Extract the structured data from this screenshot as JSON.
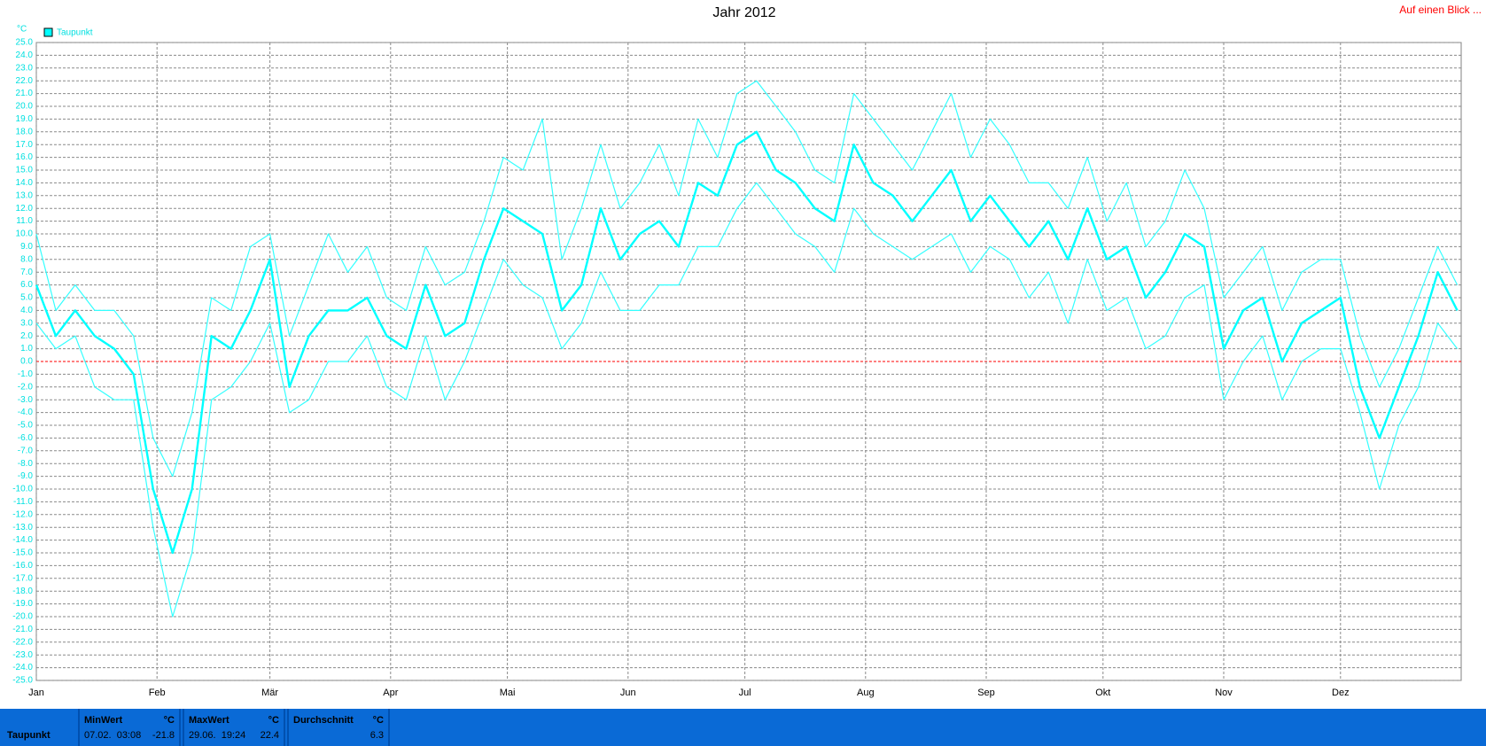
{
  "chart_data": {
    "type": "line",
    "title": "Jahr 2012",
    "link": "Auf einen Blick ...",
    "y_unit": "°C",
    "x": [
      0,
      5,
      10,
      15,
      20,
      25,
      30,
      35,
      40,
      45,
      50,
      55,
      60,
      65,
      70,
      75,
      80,
      85,
      90,
      95,
      100,
      105,
      110,
      115,
      120,
      125,
      130,
      135,
      140,
      145,
      150,
      155,
      160,
      165,
      170,
      175,
      180,
      185,
      190,
      195,
      200,
      205,
      210,
      215,
      220,
      225,
      230,
      235,
      240,
      245,
      250,
      255,
      260,
      265,
      270,
      275,
      280,
      285,
      290,
      295,
      300,
      305,
      310,
      315,
      320,
      325,
      330,
      335,
      340,
      345,
      350,
      355,
      360,
      365
    ],
    "xlim": [
      0,
      366
    ],
    "xticks": [
      {
        "value": 0,
        "label": "Jan"
      },
      {
        "value": 31,
        "label": "Feb"
      },
      {
        "value": 60,
        "label": "Mär"
      },
      {
        "value": 91,
        "label": "Apr"
      },
      {
        "value": 121,
        "label": "Mai"
      },
      {
        "value": 152,
        "label": "Jun"
      },
      {
        "value": 182,
        "label": "Jul"
      },
      {
        "value": 213,
        "label": "Aug"
      },
      {
        "value": 244,
        "label": "Sep"
      },
      {
        "value": 274,
        "label": "Okt"
      },
      {
        "value": 305,
        "label": "Nov"
      },
      {
        "value": 335,
        "label": "Dez"
      }
    ],
    "ylim": [
      -25,
      25
    ],
    "yticks": [
      {
        "value": -25,
        "label": "-25.0"
      },
      {
        "value": -24,
        "label": "-24.0"
      },
      {
        "value": -23,
        "label": "-23.0"
      },
      {
        "value": -22,
        "label": "-22.0"
      },
      {
        "value": -21,
        "label": "-21.0"
      },
      {
        "value": -20,
        "label": "-20.0"
      },
      {
        "value": -19,
        "label": "-19.0"
      },
      {
        "value": -18,
        "label": "-18.0"
      },
      {
        "value": -17,
        "label": "-17.0"
      },
      {
        "value": -16,
        "label": "-16.0"
      },
      {
        "value": -15,
        "label": "-15.0"
      },
      {
        "value": -14,
        "label": "-14.0"
      },
      {
        "value": -13,
        "label": "-13.0"
      },
      {
        "value": -12,
        "label": "-12.0"
      },
      {
        "value": -11,
        "label": "-11.0"
      },
      {
        "value": -10,
        "label": "-10.0"
      },
      {
        "value": -9,
        "label": "-9.0"
      },
      {
        "value": -8,
        "label": "-8.0"
      },
      {
        "value": -7,
        "label": "-7.0"
      },
      {
        "value": -6,
        "label": "-6.0"
      },
      {
        "value": -5,
        "label": "-5.0"
      },
      {
        "value": -4,
        "label": "-4.0"
      },
      {
        "value": -3,
        "label": "-3.0"
      },
      {
        "value": -2,
        "label": "-2.0"
      },
      {
        "value": -1,
        "label": "-1.0"
      },
      {
        "value": 0,
        "label": "0.0"
      },
      {
        "value": 1,
        "label": "1.0"
      },
      {
        "value": 2,
        "label": "2.0"
      },
      {
        "value": 3,
        "label": "3.0"
      },
      {
        "value": 4,
        "label": "4.0"
      },
      {
        "value": 5,
        "label": "5.0"
      },
      {
        "value": 6,
        "label": "6.0"
      },
      {
        "value": 7,
        "label": "7.0"
      },
      {
        "value": 8,
        "label": "8.0"
      },
      {
        "value": 9,
        "label": "9.0"
      },
      {
        "value": 10,
        "label": "10.0"
      },
      {
        "value": 11,
        "label": "11.0"
      },
      {
        "value": 12,
        "label": "12.0"
      },
      {
        "value": 13,
        "label": "13.0"
      },
      {
        "value": 14,
        "label": "14.0"
      },
      {
        "value": 15,
        "label": "15.0"
      },
      {
        "value": 16,
        "label": "16.0"
      },
      {
        "value": 17,
        "label": "17.0"
      },
      {
        "value": 18,
        "label": "18.0"
      },
      {
        "value": 19,
        "label": "19.0"
      },
      {
        "value": 20,
        "label": "20.0"
      },
      {
        "value": 21,
        "label": "21.0"
      },
      {
        "value": 22,
        "label": "22.0"
      },
      {
        "value": 23,
        "label": "23.0"
      },
      {
        "value": 24,
        "label": "24.0"
      },
      {
        "value": 25,
        "label": "25.0"
      }
    ],
    "grid": true,
    "zero_line_color": "#ff0000",
    "axis_color": "#00e0e0",
    "series": [
      {
        "name": "Taupunkt",
        "color": "#00ffff",
        "width": 2.4,
        "values": [
          6,
          2,
          4,
          2,
          1,
          -1,
          -10,
          -15,
          -10,
          2,
          1,
          4,
          8,
          -2,
          2,
          4,
          4,
          5,
          2,
          1,
          6,
          2,
          3,
          8,
          12,
          11,
          10,
          4,
          6,
          12,
          8,
          10,
          11,
          9,
          14,
          13,
          17,
          18,
          15,
          14,
          12,
          11,
          17,
          14,
          13,
          11,
          13,
          15,
          11,
          13,
          11,
          9,
          11,
          8,
          12,
          8,
          9,
          5,
          7,
          10,
          9,
          1,
          4,
          5,
          0,
          3,
          4,
          5,
          -2,
          -6,
          -2,
          2,
          7,
          4
        ]
      },
      {
        "color": "#33ffff",
        "width": 1.2,
        "values": [
          10,
          4,
          6,
          4,
          4,
          2,
          -6,
          -9,
          -4,
          5,
          4,
          9,
          10,
          2,
          6,
          10,
          7,
          9,
          5,
          4,
          9,
          6,
          7,
          11,
          16,
          15,
          19,
          8,
          12,
          17,
          12,
          14,
          17,
          13,
          19,
          16,
          21,
          22,
          20,
          18,
          15,
          14,
          21,
          19,
          17,
          15,
          18,
          21,
          16,
          19,
          17,
          14,
          14,
          12,
          16,
          11,
          14,
          9,
          11,
          15,
          12,
          5,
          7,
          9,
          4,
          7,
          8,
          8,
          2,
          -2,
          1,
          5,
          9,
          6
        ]
      },
      {
        "color": "#33ffff",
        "width": 1.2,
        "values": [
          3,
          1,
          2,
          -2,
          -3,
          -3,
          -13,
          -20,
          -15,
          -3,
          -2,
          0,
          3,
          -4,
          -3,
          0,
          0,
          2,
          -2,
          -3,
          2,
          -3,
          0,
          4,
          8,
          6,
          5,
          1,
          3,
          7,
          4,
          4,
          6,
          6,
          9,
          9,
          12,
          14,
          12,
          10,
          9,
          7,
          12,
          10,
          9,
          8,
          9,
          10,
          7,
          9,
          8,
          5,
          7,
          3,
          8,
          4,
          5,
          1,
          2,
          5,
          6,
          -3,
          0,
          2,
          -3,
          0,
          1,
          1,
          -4,
          -10,
          -5,
          -2,
          3,
          1
        ]
      }
    ]
  },
  "summary": {
    "row_label": "Taupunkt",
    "columns": [
      {
        "header": "MinWert",
        "unit": "°C",
        "time": "07.02.  03:08",
        "value": -21.8
      },
      {
        "header": "MaxWert",
        "unit": "°C",
        "time": "29.06.  19:24",
        "value": 22.4
      },
      {
        "header": "Durchschnitt",
        "unit": "°C",
        "value": 6.3
      }
    ]
  }
}
